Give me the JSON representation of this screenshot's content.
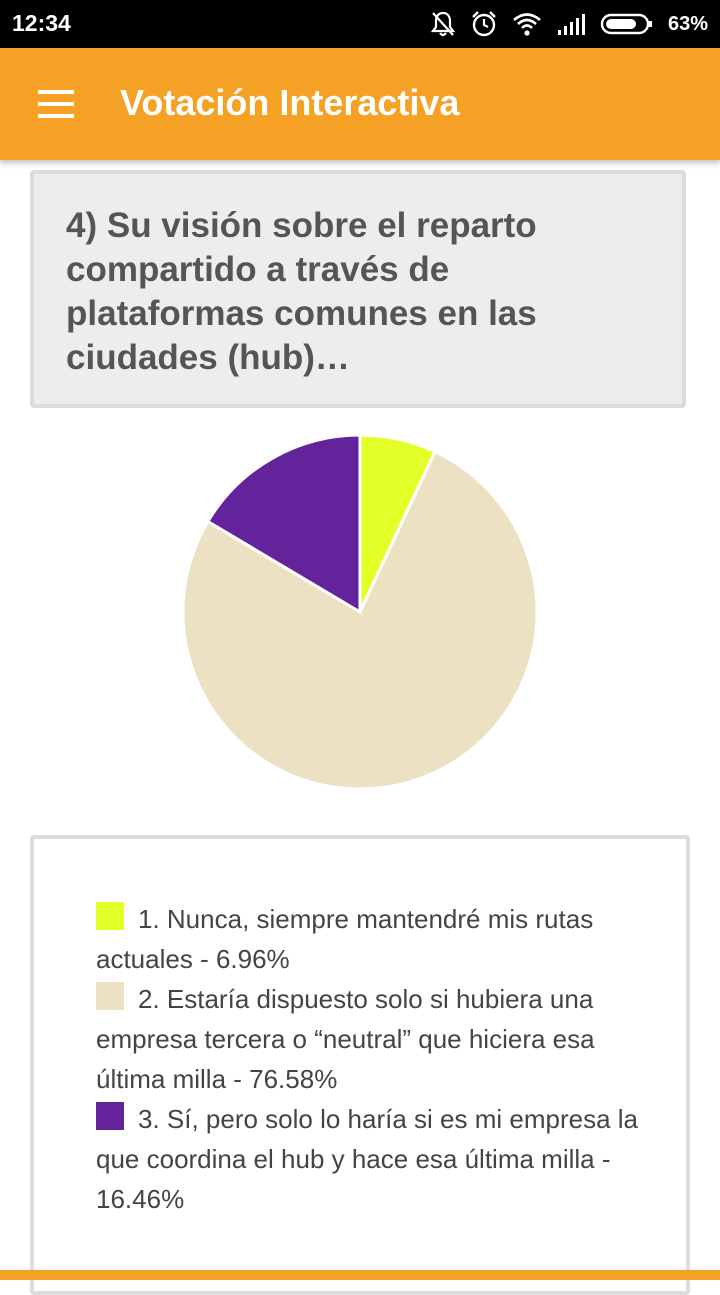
{
  "status_bar": {
    "time": "12:34",
    "battery": "63%",
    "icons": [
      "bell-off-icon",
      "alarm-icon",
      "wifi-icon",
      "signal-icon",
      "battery-icon"
    ]
  },
  "app_bar": {
    "title": "Votación Interactiva",
    "menu_icon": "hamburger-menu-icon",
    "color": "#f4a125"
  },
  "question": {
    "text": "4) Su visión sobre el reparto compartido a través de plataformas comunes en las ciudades (hub)…"
  },
  "chart_data": {
    "type": "pie",
    "categories": [
      "1. Nunca, siempre mantendré mis rutas actuales",
      "2. Estaría dispuesto solo si hubiera una empresa tercera o “neutral” que hiciera esa última milla",
      "3. Sí, pero solo lo haría si es mi empresa la que coordina el hub y hace esa última milla"
    ],
    "values": [
      6.96,
      76.58,
      16.46
    ],
    "colors": [
      "#e2ff27",
      "#ede1c4",
      "#63239a"
    ],
    "legend_placement": "bottom"
  },
  "legend": {
    "items": [
      {
        "text": "1. Nunca, siempre mantendré mis rutas actuales - 6.96%",
        "color": "#e2ff27"
      },
      {
        "text": "2. Estaría dispuesto solo si hubiera una empresa tercera o “neutral” que hiciera esa última milla - 76.58%",
        "color": "#ede1c4"
      },
      {
        "text": "3. Sí, pero solo lo haría si es mi empresa la que coordina el hub y hace esa última milla - 16.46%",
        "color": "#63239a"
      }
    ]
  }
}
